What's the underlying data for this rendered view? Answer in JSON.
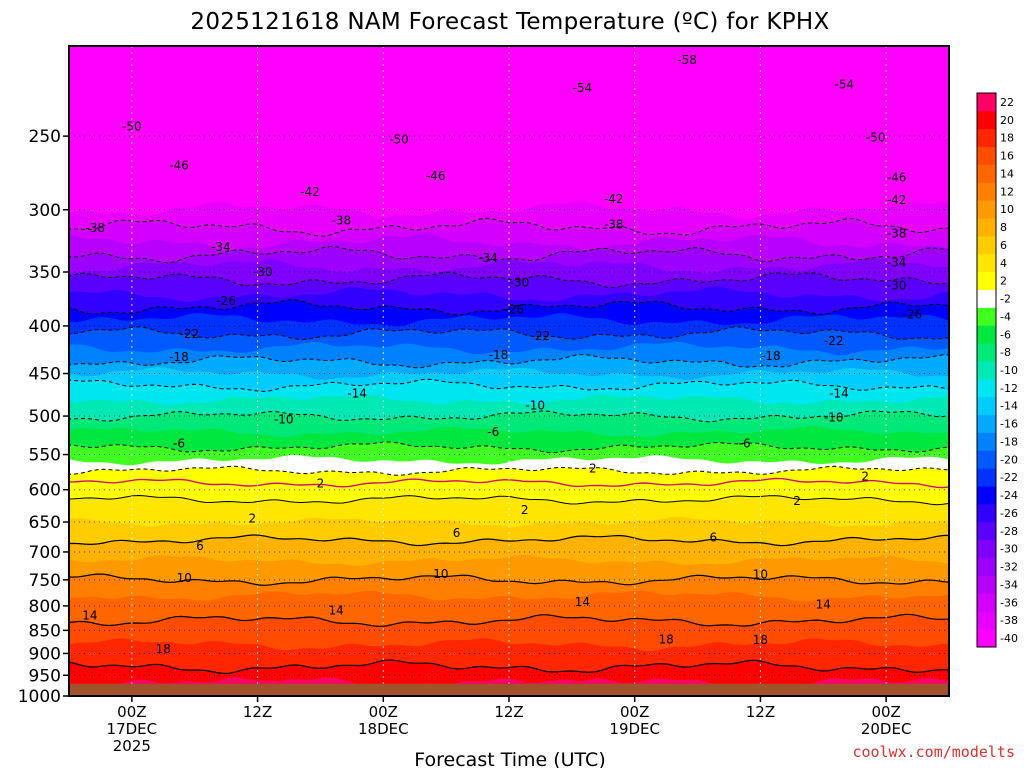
{
  "chart_data": {
    "type": "heatmap",
    "title": "2025121618 NAM Forecast Temperature (ºC) for KPHX",
    "xlabel": "Forecast Time (UTC)",
    "credit": "coolwx.com/modelts",
    "y_axis": {
      "scale": "log",
      "inverted": true,
      "range": [
        200,
        1000
      ],
      "ticks": [
        250,
        300,
        350,
        400,
        450,
        500,
        550,
        600,
        650,
        700,
        750,
        800,
        850,
        900,
        950,
        1000
      ]
    },
    "x_axis": {
      "range_hours": [
        -6,
        78
      ],
      "ticks": [
        {
          "hour": 0,
          "lines": [
            "00Z",
            "17DEC",
            "2025"
          ]
        },
        {
          "hour": 12,
          "lines": [
            "12Z"
          ]
        },
        {
          "hour": 24,
          "lines": [
            "00Z",
            "18DEC"
          ]
        },
        {
          "hour": 36,
          "lines": [
            "12Z"
          ]
        },
        {
          "hour": 48,
          "lines": [
            "00Z",
            "19DEC"
          ]
        },
        {
          "hour": 60,
          "lines": [
            "12Z"
          ]
        },
        {
          "hour": 72,
          "lines": [
            "00Z",
            "20DEC"
          ]
        }
      ]
    },
    "grid": true,
    "surface_pressure_hpa": 970,
    "colorbar": {
      "position": "right",
      "levels": [
        -40,
        -38,
        -36,
        -34,
        -32,
        -30,
        -28,
        -26,
        -24,
        -22,
        -20,
        -18,
        -16,
        -14,
        -12,
        -10,
        -8,
        -6,
        -4,
        -2,
        2,
        4,
        6,
        8,
        10,
        12,
        14,
        16,
        18,
        20,
        22
      ],
      "colors": [
        "#ff00ff",
        "#e800ff",
        "#d400ff",
        "#b800ff",
        "#9c00ff",
        "#8000ff",
        "#5a00ff",
        "#3200ff",
        "#0000ff",
        "#0032ff",
        "#005aff",
        "#0082ff",
        "#00aaff",
        "#00ccff",
        "#00e6f0",
        "#00e8b4",
        "#00e878",
        "#00e840",
        "#40ff20",
        "#ffffff",
        "#ffff00",
        "#ffe600",
        "#ffcc00",
        "#ffb200",
        "#ff9900",
        "#ff8000",
        "#ff6600",
        "#ff4c00",
        "#ff2600",
        "#ff0000",
        "#ff0066"
      ]
    },
    "profile": {
      "pressure_hpa": [
        200,
        230,
        250,
        270,
        300,
        320,
        350,
        370,
        400,
        430,
        450,
        470,
        500,
        530,
        550,
        580,
        600,
        630,
        650,
        680,
        700,
        730,
        750,
        780,
        800,
        830,
        850,
        880,
        900,
        930,
        950,
        970
      ],
      "temperature_c": [
        -60,
        -55,
        -50,
        -47,
        -40,
        -37,
        -31,
        -28,
        -23,
        -19,
        -16,
        -13,
        -10,
        -7,
        -5,
        -1,
        1,
        3,
        4,
        6,
        7,
        9,
        10,
        12,
        13,
        14,
        15,
        16,
        17,
        18,
        19,
        20
      ]
    },
    "contour_labels": [
      {
        "value": "-58",
        "hour": 53,
        "p": 207
      },
      {
        "value": "-54",
        "hour": 43,
        "p": 222
      },
      {
        "value": "-54",
        "hour": 68,
        "p": 220
      },
      {
        "value": "-50",
        "hour": 0,
        "p": 244
      },
      {
        "value": "-50",
        "hour": 25.5,
        "p": 252
      },
      {
        "value": "-50",
        "hour": 71,
        "p": 251
      },
      {
        "value": "-46",
        "hour": 4.5,
        "p": 269
      },
      {
        "value": "-46",
        "hour": 29,
        "p": 276
      },
      {
        "value": "-46",
        "hour": 73,
        "p": 277
      },
      {
        "value": "-42",
        "hour": 17,
        "p": 287
      },
      {
        "value": "-42",
        "hour": 46,
        "p": 292
      },
      {
        "value": "-42",
        "hour": 73,
        "p": 293
      },
      {
        "value": "-38",
        "hour": -3.5,
        "p": 314
      },
      {
        "value": "-38",
        "hour": 20,
        "p": 308
      },
      {
        "value": "-38",
        "hour": 46,
        "p": 311
      },
      {
        "value": "-38",
        "hour": 73,
        "p": 318
      },
      {
        "value": "-34",
        "hour": 8.5,
        "p": 329
      },
      {
        "value": "-34",
        "hour": 34,
        "p": 338
      },
      {
        "value": "-34",
        "hour": 73,
        "p": 342
      },
      {
        "value": "-30",
        "hour": 12.5,
        "p": 350
      },
      {
        "value": "-30",
        "hour": 37,
        "p": 359
      },
      {
        "value": "-30",
        "hour": 73,
        "p": 362
      },
      {
        "value": "-26",
        "hour": 9,
        "p": 376
      },
      {
        "value": "-26",
        "hour": 36.5,
        "p": 384
      },
      {
        "value": "-26",
        "hour": 74.5,
        "p": 389
      },
      {
        "value": "-22",
        "hour": 5.5,
        "p": 408
      },
      {
        "value": "-22",
        "hour": 39,
        "p": 410
      },
      {
        "value": "-22",
        "hour": 67,
        "p": 415
      },
      {
        "value": "-18",
        "hour": 4.5,
        "p": 432
      },
      {
        "value": "-18",
        "hour": 35,
        "p": 430
      },
      {
        "value": "-18",
        "hour": 61,
        "p": 431
      },
      {
        "value": "-14",
        "hour": 21.5,
        "p": 473
      },
      {
        "value": "-14",
        "hour": 67.5,
        "p": 473
      },
      {
        "value": "-10",
        "hour": 14.5,
        "p": 504
      },
      {
        "value": "-10",
        "hour": 38.5,
        "p": 487
      },
      {
        "value": "-10",
        "hour": 67,
        "p": 502
      },
      {
        "value": "-6",
        "hour": 4.5,
        "p": 535
      },
      {
        "value": "-6",
        "hour": 34.5,
        "p": 520
      },
      {
        "value": "-6",
        "hour": 58.5,
        "p": 535
      },
      {
        "value": "2",
        "hour": 44,
        "p": 569
      },
      {
        "value": "2",
        "hour": 70,
        "p": 581
      },
      {
        "value": "2",
        "hour": 18,
        "p": 591
      },
      {
        "value": "2",
        "hour": 11.5,
        "p": 644
      },
      {
        "value": "2",
        "hour": 37.5,
        "p": 631
      },
      {
        "value": "2",
        "hour": 63.5,
        "p": 617
      },
      {
        "value": "6",
        "hour": 6.5,
        "p": 690
      },
      {
        "value": "6",
        "hour": 31,
        "p": 668
      },
      {
        "value": "6",
        "hour": 55.5,
        "p": 675
      },
      {
        "value": "10",
        "hour": 5,
        "p": 747
      },
      {
        "value": "10",
        "hour": 29.5,
        "p": 739
      },
      {
        "value": "10",
        "hour": 60,
        "p": 740
      },
      {
        "value": "14",
        "hour": -4,
        "p": 819
      },
      {
        "value": "14",
        "hour": 19.5,
        "p": 809
      },
      {
        "value": "14",
        "hour": 43,
        "p": 792
      },
      {
        "value": "14",
        "hour": 66,
        "p": 797
      },
      {
        "value": "18",
        "hour": 3,
        "p": 890
      },
      {
        "value": "18",
        "hour": 51,
        "p": 869
      },
      {
        "value": "18",
        "hour": 60,
        "p": 871
      }
    ]
  }
}
